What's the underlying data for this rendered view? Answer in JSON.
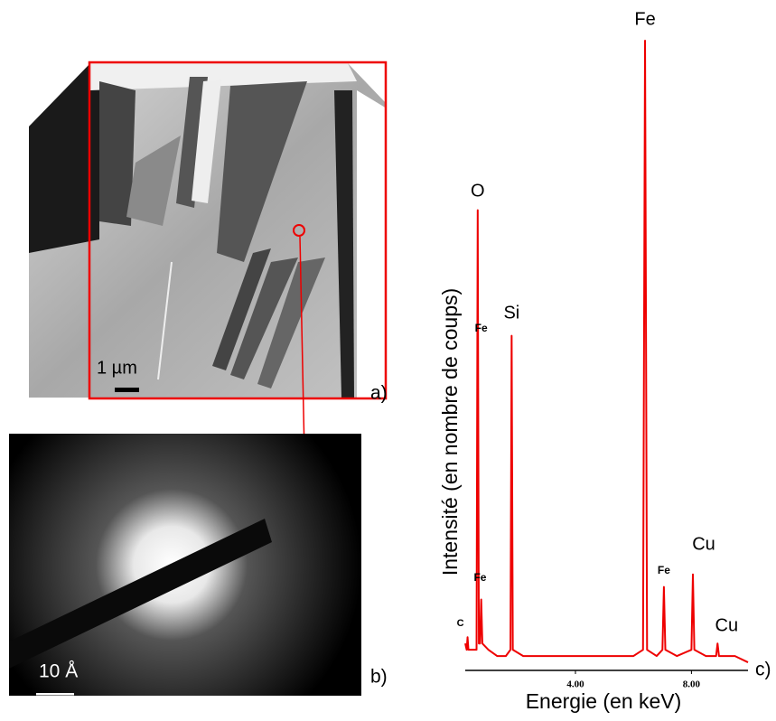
{
  "panels": {
    "a": {
      "label": "a)",
      "scale_bar": "1 µm"
    },
    "b": {
      "label": "b)",
      "scale_bar": "10 Å"
    },
    "c": {
      "label": "c)"
    }
  },
  "chart_data": {
    "type": "line",
    "xlabel": "Energie (en keV)",
    "ylabel": "Intensité (en nombre de coups)",
    "x": [
      0.2,
      0.25,
      0.28,
      0.31,
      0.45,
      0.59,
      0.63,
      0.67,
      0.71,
      0.75,
      0.79,
      1.0,
      1.3,
      1.6,
      1.76,
      1.8,
      1.84,
      2.2,
      3,
      4,
      5,
      5.5,
      6.0,
      6.33,
      6.4,
      6.47,
      6.8,
      7.0,
      7.05,
      7.1,
      7.5,
      8.0,
      8.05,
      8.1,
      8.5,
      8.85,
      8.9,
      8.95,
      9.5,
      9.95
    ],
    "values": [
      4,
      3,
      5,
      3,
      3,
      3,
      73,
      4,
      4,
      11,
      4,
      3,
      2,
      2,
      3,
      53,
      3,
      2,
      2,
      2,
      2,
      2,
      2,
      3,
      100,
      3,
      2,
      3,
      13,
      3,
      2,
      3,
      15,
      3,
      2,
      2,
      4,
      2,
      2,
      1
    ],
    "color": "#ee0000",
    "xlim": [
      0.2,
      9.95
    ],
    "ylim": [
      0,
      100
    ],
    "xticks": [
      {
        "value": 4,
        "label": "4.00"
      },
      {
        "value": 8,
        "label": "8.00"
      }
    ],
    "annotations": [
      {
        "text": "Fe",
        "x": 6.4
      },
      {
        "text": "O",
        "x": 0.63
      },
      {
        "text": "Si",
        "x": 1.8
      },
      {
        "text": "Fe",
        "x": 0.75
      },
      {
        "text": "Fe",
        "x": 0.9
      },
      {
        "text": "Cu",
        "x": 8.05
      },
      {
        "text": "Fe",
        "x": 7.05
      },
      {
        "text": "C",
        "x": 0.28
      },
      {
        "text": "Cu",
        "x": 8.9
      }
    ]
  }
}
